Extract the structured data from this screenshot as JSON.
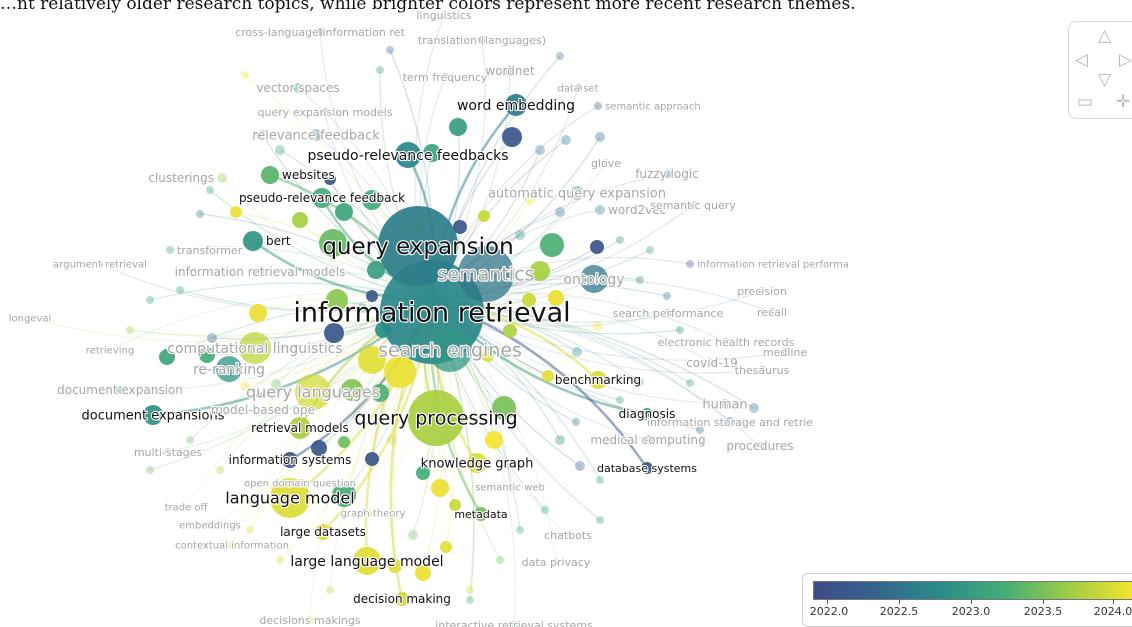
{
  "caption": "…nt relatively older research topics, while brighter colors represent more recent research themes.",
  "colorscale": {
    "colors": [
      "#3f4a8a",
      "#35648c",
      "#2a8c8a",
      "#44ad77",
      "#9dcd45",
      "#f3e331"
    ],
    "ticks": [
      "2022.0",
      "2022.5",
      "2023.0",
      "2023.5",
      "2024.0"
    ],
    "range": [
      2021.9,
      2024.07
    ]
  },
  "nav": {
    "up": "△",
    "left": "◁",
    "right": "▷",
    "down": "▽",
    "zoom_out": "▭",
    "zoom_in": "✛"
  },
  "nodes": [
    {
      "id": "query-expansion",
      "label": "query expansion",
      "year": 2022.62,
      "weight": 45
    },
    {
      "id": "information-retrieval",
      "label": "information retrieval",
      "year": 2022.72,
      "weight": 52
    },
    {
      "id": "semantics",
      "label": "semantics",
      "year": 2022.52,
      "weight": 28
    },
    {
      "id": "search-engines",
      "label": "search engines",
      "year": 2022.9,
      "weight": 22
    },
    {
      "id": "query-processing",
      "label": "query processing",
      "year": 2023.7,
      "weight": 28
    },
    {
      "id": "query-languages",
      "label": "query languages",
      "year": 2023.9,
      "weight": 20
    },
    {
      "id": "ontology",
      "label": "ontology",
      "year": 2022.55,
      "weight": 14
    },
    {
      "id": "language-model",
      "label": "language model",
      "year": 2023.95,
      "weight": 20
    },
    {
      "id": "large-language-model",
      "label": "large language model",
      "year": 2023.98,
      "weight": 14
    },
    {
      "id": "word-embedding",
      "label": "word embedding",
      "year": 2022.6,
      "weight": 11
    },
    {
      "id": "pseudo-relevance-feedbacks",
      "label": "pseudo-relevance feedbacks",
      "year": 2022.7,
      "weight": 13
    },
    {
      "id": "pseudo-relevance-feedback",
      "label": "pseudo-relevance feedback",
      "year": 2023.2,
      "weight": 11
    },
    {
      "id": "websites",
      "label": "websites",
      "year": 2023.3,
      "weight": 10
    },
    {
      "id": "bert",
      "label": "bert",
      "year": 2022.9,
      "weight": 11
    },
    {
      "id": "re-ranking",
      "label": "re-ranking",
      "year": 2022.85,
      "weight": 13
    },
    {
      "id": "document-expansions",
      "label": "document expansions",
      "year": 2022.85,
      "weight": 10
    },
    {
      "id": "retrieval-models",
      "label": "retrieval models",
      "year": 2023.7,
      "weight": 12
    },
    {
      "id": "information-systems",
      "label": "information systems",
      "year": 2022.15,
      "weight": 9
    },
    {
      "id": "knowledge-graph",
      "label": "knowledge graph",
      "year": 2023.95,
      "weight": 11
    },
    {
      "id": "benchmarking",
      "label": "benchmarking",
      "year": 2023.95,
      "weight": 10
    },
    {
      "id": "diagnosis",
      "label": "diagnosis",
      "year": 2022.9,
      "weight": 6
    },
    {
      "id": "database-systems",
      "label": "database systems",
      "year": 2022.1,
      "weight": 6
    },
    {
      "id": "metadata",
      "label": "metadata",
      "year": 2023.45,
      "weight": 7
    },
    {
      "id": "large-datasets",
      "label": "large datasets",
      "year": 2023.95,
      "weight": 8
    },
    {
      "id": "decision-making",
      "label": "decision making",
      "year": 2023.9,
      "weight": 8
    },
    {
      "id": "computational-linguistics",
      "label": "computational linguistics",
      "year": 2023.8,
      "weight": 17
    },
    {
      "id": "automatic-query-expansion",
      "label": "automatic query expansion",
      "year": 2022.6,
      "weight": 8
    },
    {
      "id": "word2vec",
      "label": "word2vec",
      "year": 2022.6,
      "weight": 6
    },
    {
      "id": "transformer",
      "label": "transformer",
      "year": 2023.0,
      "weight": 5
    },
    {
      "id": "clusterings",
      "label": "clusterings",
      "year": 2023.6,
      "weight": 5
    },
    {
      "id": "vector-spaces",
      "label": "vector spaces",
      "year": 2022.6,
      "weight": 6
    },
    {
      "id": "query-expansion-models",
      "label": "query expansion models",
      "year": 2022.5,
      "weight": 5
    },
    {
      "id": "relevance-feedback",
      "label": "relevance feedback",
      "year": 2022.4,
      "weight": 6
    },
    {
      "id": "term-frequency",
      "label": "term frequency",
      "year": 2022.55,
      "weight": 5
    },
    {
      "id": "wordnet",
      "label": "wordnet",
      "year": 2022.4,
      "weight": 6
    },
    {
      "id": "cross-language-information-ret",
      "label": "cross-language information ret",
      "year": 2022.45,
      "weight": 5
    },
    {
      "id": "translation-languages",
      "label": "translation (languages)",
      "year": 2022.3,
      "weight": 5
    },
    {
      "id": "linguistics",
      "label": "linguistics",
      "year": 2022.3,
      "weight": 5
    },
    {
      "id": "data-set",
      "label": "data set",
      "year": 2022.3,
      "weight": 4
    },
    {
      "id": "semantic-approach",
      "label": "semantic approach",
      "year": 2022.2,
      "weight": 4
    },
    {
      "id": "glove",
      "label": "glove",
      "year": 2023.4,
      "weight": 4
    },
    {
      "id": "fuzzy-logic",
      "label": "fuzzy logic",
      "year": 2022.3,
      "weight": 5
    },
    {
      "id": "semantic-query",
      "label": "semantic query",
      "year": 2022.2,
      "weight": 4
    },
    {
      "id": "argument-retrieval",
      "label": "argument retrieval",
      "year": 2022.3,
      "weight": 3
    },
    {
      "id": "information-retrieval-models",
      "label": "information retrieval models",
      "year": 2022.9,
      "weight": 5
    },
    {
      "id": "information-retrieval-performa",
      "label": "information retrieval performa",
      "year": 2022.2,
      "weight": 4
    },
    {
      "id": "precision",
      "label": "precision",
      "year": 2022.4,
      "weight": 5
    },
    {
      "id": "recall",
      "label": "recall",
      "year": 2022.35,
      "weight": 5
    },
    {
      "id": "search-performance",
      "label": "search performance",
      "year": 2022.5,
      "weight": 5
    },
    {
      "id": "electronic-health-records",
      "label": "electronic health records",
      "year": 2022.5,
      "weight": 5
    },
    {
      "id": "medline",
      "label": "medline",
      "year": 2022.25,
      "weight": 4
    },
    {
      "id": "covid-19",
      "label": "covid-19",
      "year": 2023.0,
      "weight": 5
    },
    {
      "id": "thesaurus",
      "label": "thesaurus",
      "year": 2022.3,
      "weight": 4
    },
    {
      "id": "longeval",
      "label": "longeval",
      "year": 2023.7,
      "weight": 3
    },
    {
      "id": "retrieving",
      "label": "retrieving",
      "year": 2023.4,
      "weight": 3
    },
    {
      "id": "document-expansion",
      "label": "document expansion",
      "year": 2023.0,
      "weight": 5
    },
    {
      "id": "model-based-ope",
      "label": "model-based ope",
      "year": 2023.8,
      "weight": 5
    },
    {
      "id": "multi-stages",
      "label": "multi-stages",
      "year": 2023.2,
      "weight": 4
    },
    {
      "id": "human",
      "label": "human",
      "year": 2022.45,
      "weight": 6
    },
    {
      "id": "information-storage-and-retrie",
      "label": "information storage and retrie",
      "year": 2022.35,
      "weight": 5
    },
    {
      "id": "medical-computing",
      "label": "medical computing",
      "year": 2022.5,
      "weight": 5
    },
    {
      "id": "procedures",
      "label": "procedures",
      "year": 2022.4,
      "weight": 4
    },
    {
      "id": "trade-off",
      "label": "trade off",
      "year": 2023.85,
      "weight": 3
    },
    {
      "id": "graph-theory",
      "label": "graph theory",
      "year": 2023.9,
      "weight": 4
    },
    {
      "id": "chatbots",
      "label": "chatbots",
      "year": 2023.6,
      "weight": 4
    },
    {
      "id": "data-privacy",
      "label": "data privacy",
      "year": 2023.6,
      "weight": 4
    },
    {
      "id": "decisions-makings",
      "label": "decisions makings",
      "year": 2023.9,
      "weight": 4
    },
    {
      "id": "interactive-retrieval-systems",
      "label": "interactive retrieval systems",
      "year": 2023.3,
      "weight": 4
    },
    {
      "id": "open-domain-question",
      "label": "open domain question",
      "year": 2023.9,
      "weight": 4
    },
    {
      "id": "semantic-web",
      "label": "semantic web",
      "year": 2022.5,
      "weight": 4
    },
    {
      "id": "contextual-information",
      "label": "contextual information",
      "year": 2023.9,
      "weight": 4
    },
    {
      "id": "embeddings",
      "label": "embeddings",
      "year": 2023.7,
      "weight": 4
    }
  ]
}
